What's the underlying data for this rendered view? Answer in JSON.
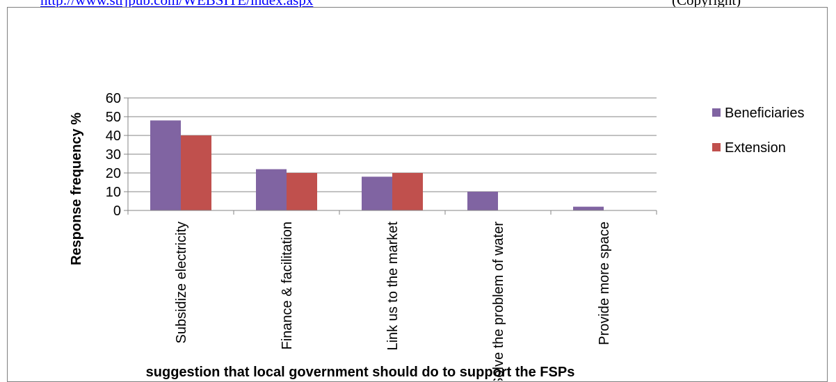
{
  "header": {
    "link_text": "http://www.strjpub.com/WEBSITE/index.aspx",
    "trailing_text": "(Copyright)"
  },
  "chart_data": {
    "type": "bar",
    "categories": [
      "Subsidize electricity",
      "Finance & facilitation",
      "Link us to the market",
      "Solve the problem of water",
      "Provide more space"
    ],
    "series": [
      {
        "name": "Beneficiaries",
        "values": [
          48,
          22,
          18,
          10,
          2
        ],
        "color": "#8064a2"
      },
      {
        "name": "Extension",
        "values": [
          40,
          20,
          20,
          0,
          0
        ],
        "color": "#c0504d"
      }
    ],
    "y_ticks": [
      "0",
      "10",
      "20",
      "30",
      "40",
      "50",
      "60"
    ],
    "ylim": [
      0,
      60
    ],
    "xlabel": "suggestion that local government should do to support the FSPs",
    "ylabel": "Response frequency %",
    "grid": true,
    "legend_position": "right",
    "gridline_color": "#868686",
    "axis_color": "#868686"
  }
}
